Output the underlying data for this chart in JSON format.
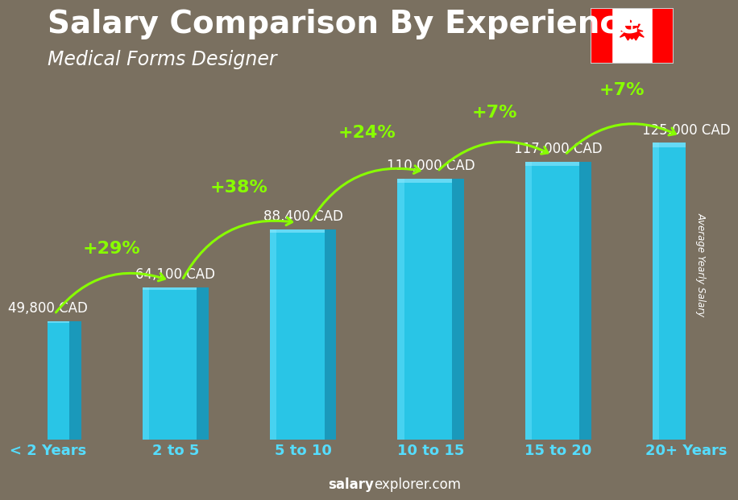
{
  "title": "Salary Comparison By Experience",
  "subtitle": "Medical Forms Designer",
  "categories": [
    "< 2 Years",
    "2 to 5",
    "5 to 10",
    "10 to 15",
    "15 to 20",
    "20+ Years"
  ],
  "values": [
    49800,
    64100,
    88400,
    110000,
    117000,
    125000
  ],
  "labels": [
    "49,800 CAD",
    "64,100 CAD",
    "88,400 CAD",
    "110,000 CAD",
    "117,000 CAD",
    "125,000 CAD"
  ],
  "pct_changes": [
    "+29%",
    "+38%",
    "+24%",
    "+7%",
    "+7%"
  ],
  "bar_color": "#29C5E6",
  "bar_left_color": "#55D8F5",
  "bar_right_color": "#1A99BB",
  "bar_top_color": "#90E8FF",
  "pct_color": "#88FF00",
  "label_color": "#FFFFFF",
  "title_color": "#FFFFFF",
  "subtitle_color": "#FFFFFF",
  "bg_color": "#7a7060",
  "xtick_color": "#55DDFF",
  "ylabel": "Average Yearly Salary",
  "footer_bold": "salary",
  "footer_normal": "explorer.com",
  "ylim_max": 148000,
  "title_fontsize": 28,
  "subtitle_fontsize": 17,
  "label_fontsize": 12,
  "pct_fontsize": 16,
  "xtick_fontsize": 13
}
